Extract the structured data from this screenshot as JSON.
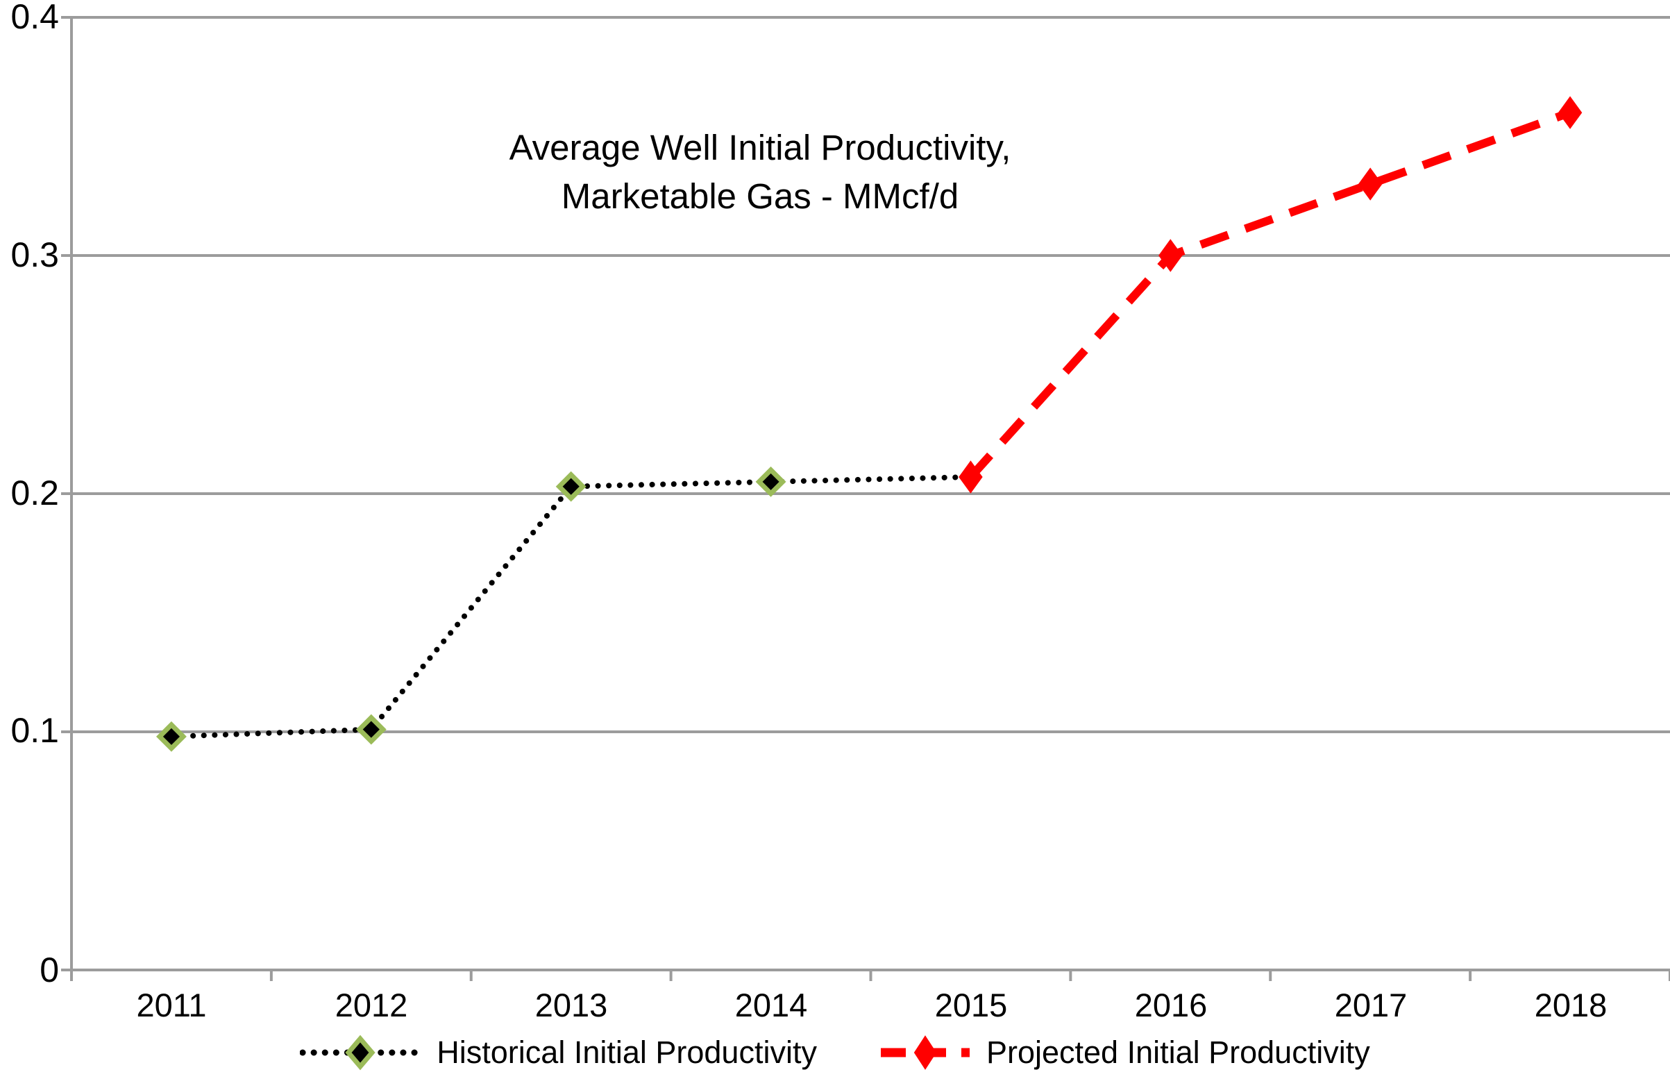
{
  "chart_data": {
    "type": "line",
    "title": "Average Well Initial Productivity, Marketable Gas - MMcf/d",
    "title_line1": "Average Well Initial Productivity,",
    "title_line2": "Marketable Gas - MMcf/d",
    "categories": [
      "2011",
      "2012",
      "2013",
      "2014",
      "2015",
      "2016",
      "2017",
      "2018"
    ],
    "series": [
      {
        "name": "Historical Initial Productivity",
        "values": [
          0.098,
          0.101,
          0.203,
          0.205,
          0.207,
          null,
          null,
          null
        ],
        "line_color": "#000000",
        "line_style": "dotted",
        "marker_fill": "#000000",
        "marker_stroke": "#9bbb59",
        "marker_hidden_indices": [
          4
        ]
      },
      {
        "name": "Projected Initial Productivity",
        "values": [
          null,
          null,
          null,
          null,
          0.207,
          0.3,
          0.33,
          0.36
        ],
        "line_color": "#ff0000",
        "line_style": "dashed",
        "marker_fill": "#ff0000",
        "marker_stroke": "#ff0000",
        "marker_hidden_indices": []
      }
    ],
    "xlabel": "",
    "ylabel": "",
    "ylim": [
      0,
      0.4
    ],
    "yticks": [
      0,
      0.1,
      0.2,
      0.3,
      0.4
    ],
    "ytick_labels": [
      "0",
      "0.1",
      "0.2",
      "0.3",
      "0.4"
    ],
    "grid": true,
    "axis_color": "#9c9c9c",
    "legend_position": "bottom"
  }
}
